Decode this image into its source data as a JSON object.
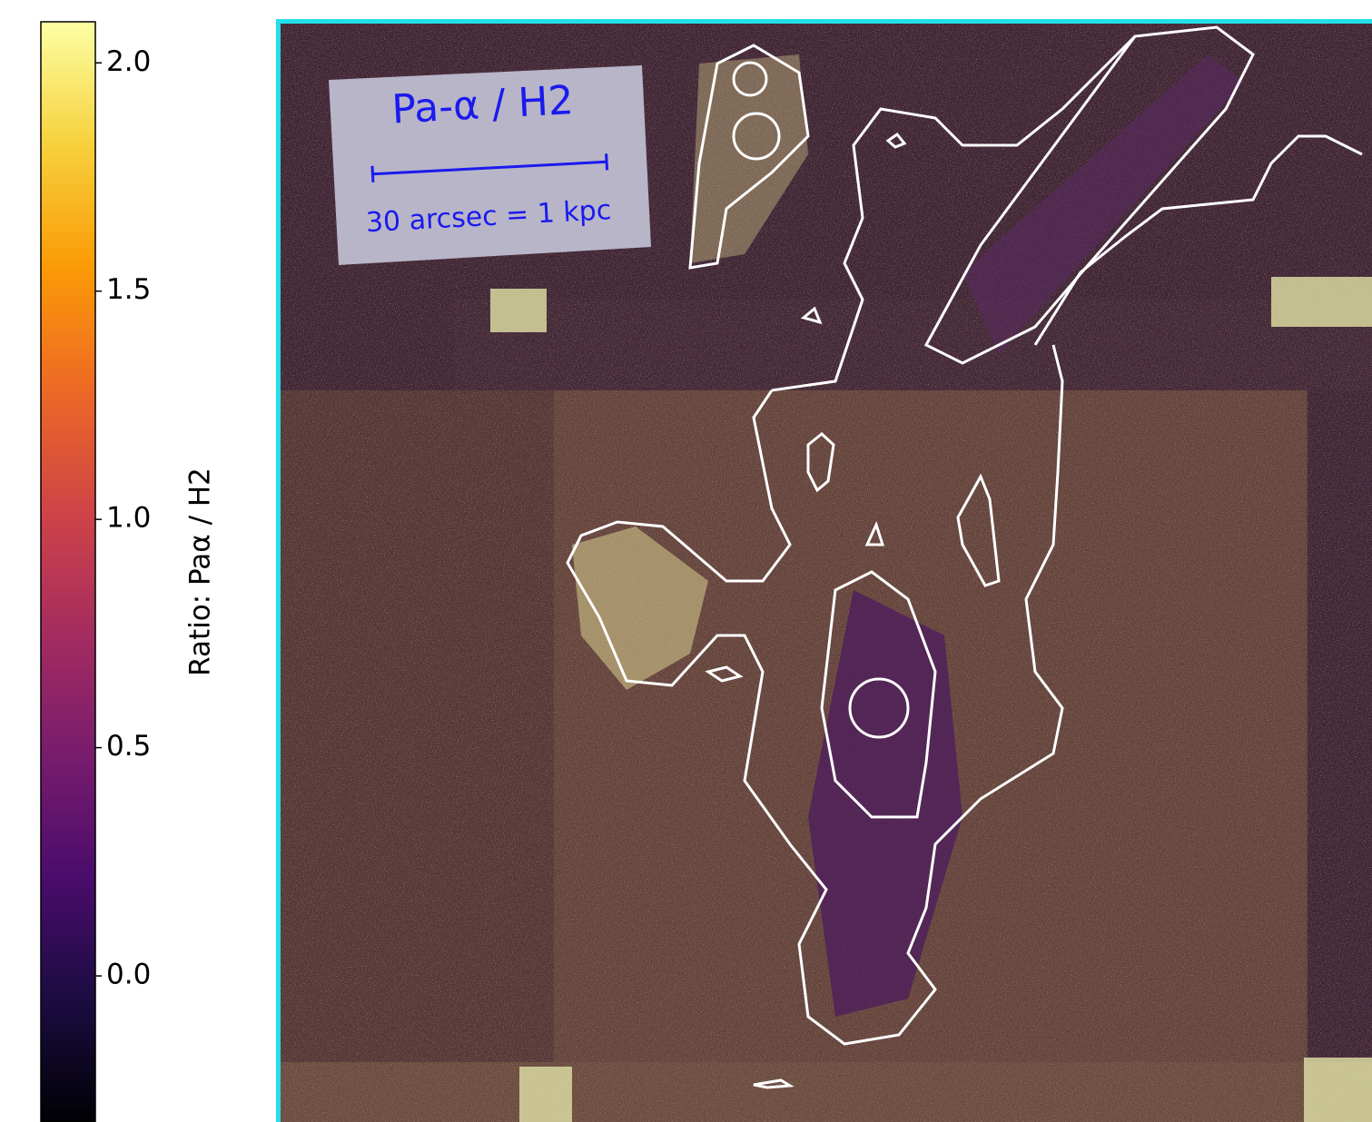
{
  "chart_data": {
    "type": "image",
    "label_title": "Pa-α / H2",
    "scale_label": "30 arcsec = 1 kpc",
    "colorbar_label": "Ratio: Paα / H2",
    "clim": [
      -0.32,
      2.09
    ],
    "colorbar_ticks": [
      {
        "value": 0,
        "label": "0.0"
      },
      0.5,
      {
        "value": 1,
        "label": "1.0"
      },
      1.5,
      {
        "value": 2,
        "label": "2.0"
      }
    ],
    "colormap": [
      "#000004",
      "#1b0c41",
      "#4a0c6b",
      "#781c6d",
      "#a52c60",
      "#cf4446",
      "#ed6925",
      "#fb9b06",
      "#f7d13d",
      "#fcffa4"
    ]
  }
}
